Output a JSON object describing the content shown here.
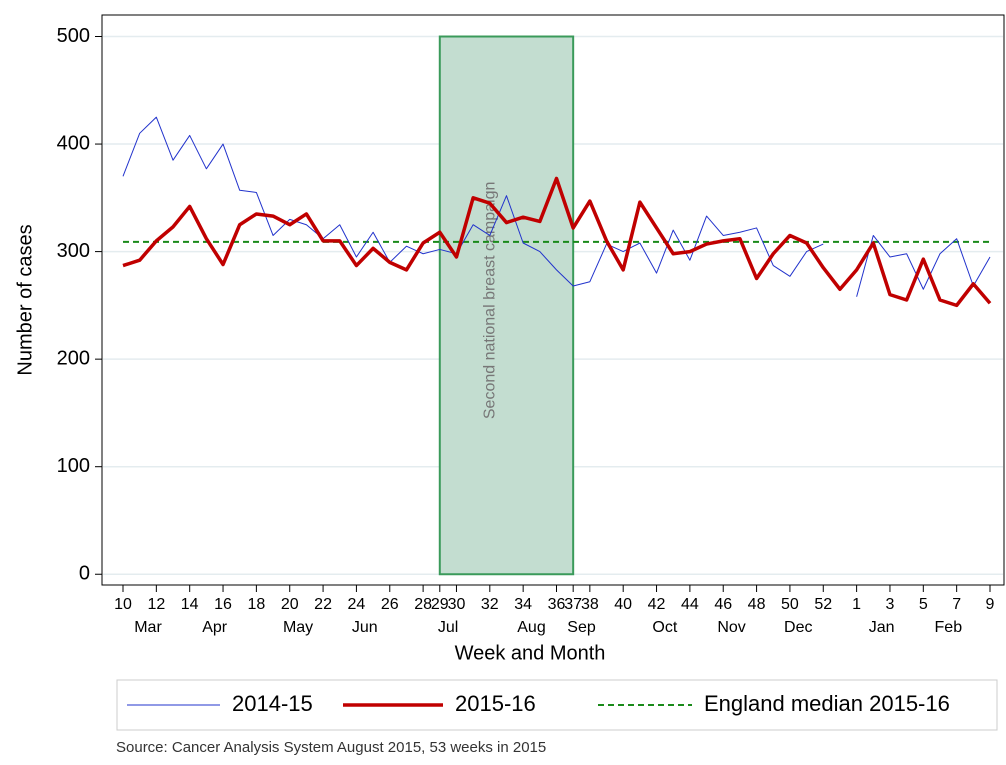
{
  "chart_data": {
    "type": "line",
    "x_label": "Week and Month",
    "y_label": "Number of cases",
    "categories": [
      "10",
      null,
      "12",
      null,
      "14",
      null,
      "16",
      null,
      "18",
      null,
      "20",
      null,
      "22",
      null,
      "24",
      null,
      "26",
      null,
      "28",
      "29",
      "30",
      null,
      "32",
      null,
      "34",
      null,
      "36",
      "37",
      "38",
      null,
      "40",
      null,
      "42",
      null,
      "44",
      null,
      "46",
      null,
      "48",
      null,
      "50",
      null,
      "52",
      null,
      "1",
      null,
      "3",
      null,
      "5",
      null,
      "7",
      null,
      "9"
    ],
    "months": [
      null,
      "Mar",
      null,
      null,
      null,
      "Apr",
      null,
      null,
      null,
      null,
      "May",
      null,
      null,
      null,
      "Jun",
      null,
      null,
      null,
      null,
      "Jul",
      null,
      null,
      null,
      null,
      "Aug",
      null,
      null,
      "Sep",
      null,
      null,
      null,
      null,
      "Oct",
      null,
      null,
      null,
      "Nov",
      null,
      null,
      null,
      "Dec",
      null,
      null,
      null,
      null,
      "Jan",
      null,
      null,
      null,
      "Feb",
      null,
      null,
      null
    ],
    "series": [
      {
        "name": "2014-15",
        "color": "#2233cc",
        "width": 1,
        "values": [
          370,
          410,
          425,
          385,
          408,
          377,
          400,
          357,
          355,
          315,
          330,
          325,
          312,
          325,
          295,
          318,
          290,
          305,
          298,
          302,
          298,
          325,
          315,
          352,
          308,
          300,
          283,
          268,
          272,
          307,
          300,
          308,
          280,
          320,
          292,
          333,
          315,
          318,
          322,
          287,
          277,
          300,
          307,
          null,
          258,
          315,
          295,
          298,
          265,
          298,
          312,
          268,
          295
        ]
      },
      {
        "name": "2015-16",
        "color": "#c00000",
        "width": 3.5,
        "values": [
          287,
          292,
          310,
          323,
          342,
          312,
          288,
          325,
          335,
          333,
          325,
          335,
          310,
          310,
          287,
          303,
          290,
          283,
          308,
          318,
          295,
          350,
          345,
          327,
          332,
          328,
          368,
          322,
          347,
          310,
          283,
          346,
          322,
          298,
          300,
          307,
          310,
          312,
          275,
          298,
          315,
          308,
          285,
          265,
          283,
          308,
          260,
          255,
          293,
          255,
          250,
          270,
          252
        ]
      }
    ],
    "reference_line": {
      "name": "England median 2015-16",
      "value": 309,
      "color": "#1a8a1a"
    },
    "shaded_region": {
      "label": "Second national breast campaign",
      "from": "29",
      "to": "37",
      "y_range": [
        0,
        500
      ],
      "color": "#c3ddd0",
      "edge_color": "#3a9a5a"
    },
    "ylim": [
      -10,
      520
    ],
    "yticks": [
      0,
      100,
      200,
      300,
      400,
      500
    ],
    "grid": true,
    "legend": "bottom",
    "source": "Source: Cancer Analysis System August 2015, 53 weeks in 2015"
  }
}
